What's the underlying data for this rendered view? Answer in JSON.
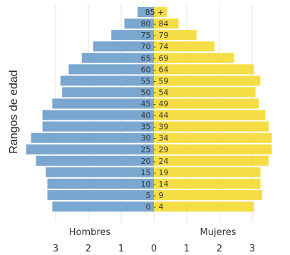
{
  "chart_data": {
    "type": "bar",
    "orientation": "horizontal",
    "ylabel": "Rangos de edad",
    "categories": [
      "0 - 4",
      "5 - 9",
      "10 - 14",
      "15 - 19",
      "20 - 24",
      "25 - 29",
      "30 - 34",
      "35 - 39",
      "40 - 44",
      "45 - 49",
      "50 - 54",
      "55 - 59",
      "60 - 64",
      "65 - 69",
      "70 - 74",
      "75 - 79",
      "80 - 84",
      "85 +"
    ],
    "series": [
      {
        "name": "Hombres",
        "color": "#7aa7cf",
        "values": [
          3.1,
          3.25,
          3.25,
          3.3,
          3.6,
          3.9,
          3.75,
          3.4,
          3.4,
          3.1,
          2.8,
          2.85,
          2.6,
          2.2,
          1.85,
          1.3,
          0.9,
          0.5
        ]
      },
      {
        "name": "Mujeres",
        "color": "#f5de45",
        "values": [
          3.05,
          3.3,
          3.25,
          3.25,
          3.5,
          3.6,
          3.6,
          3.5,
          3.4,
          3.2,
          3.1,
          3.25,
          3.05,
          2.45,
          1.85,
          1.3,
          0.75,
          0.4
        ]
      }
    ],
    "xticks": [
      {
        "value": -3,
        "label": "3"
      },
      {
        "value": -2,
        "label": "2"
      },
      {
        "value": -1,
        "label": "1"
      },
      {
        "value": 0,
        "label": "0"
      },
      {
        "value": 1,
        "label": "1"
      },
      {
        "value": 2,
        "label": "2"
      },
      {
        "value": 3,
        "label": "3"
      }
    ],
    "xlim": [
      -4.1,
      3.7
    ],
    "grid": true
  }
}
